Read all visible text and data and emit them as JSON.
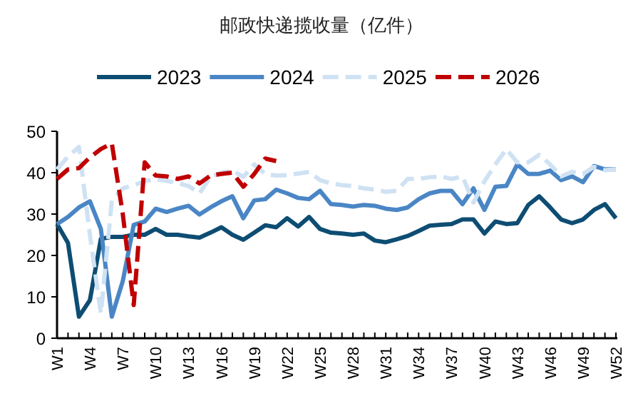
{
  "chart_data": {
    "type": "line",
    "title": "邮政快递揽收量（亿件）",
    "categories": [
      "W1",
      null,
      null,
      "W4",
      null,
      null,
      "W7",
      null,
      null,
      "W10",
      null,
      null,
      "W13",
      null,
      null,
      "W16",
      null,
      null,
      "W19",
      null,
      null,
      "W22",
      null,
      null,
      "W25",
      null,
      null,
      "W28",
      null,
      null,
      "W31",
      null,
      null,
      "W34",
      null,
      null,
      "W37",
      null,
      null,
      "W40",
      null,
      null,
      "W43",
      null,
      null,
      "W46",
      null,
      null,
      "W49",
      null,
      null,
      "W52"
    ],
    "ylim": [
      0,
      50
    ],
    "yticks": [
      0,
      10,
      20,
      30,
      40,
      50
    ],
    "legend": "top",
    "grid": false,
    "marker": "none",
    "series": [
      {
        "name": "2023",
        "color": "#0e4d73",
        "line_style": "solid",
        "values": [
          27.6,
          23,
          5.2,
          9.2,
          24,
          24.5,
          24.5,
          25,
          25,
          26.4,
          25,
          25,
          24.6,
          24.3,
          25.5,
          26.8,
          25,
          23.8,
          25.5,
          27.3,
          26.8,
          29,
          27,
          29.3,
          26.4,
          25.5,
          25.3,
          25,
          25.3,
          23.6,
          23.2,
          23.9,
          24.7,
          25.9,
          27.2,
          27.4,
          27.6,
          28.7,
          28.7,
          25.3,
          28.2,
          27.6,
          27.8,
          32.2,
          34.3,
          31.6,
          28.7,
          27.8,
          28.7,
          31,
          32.4,
          29
        ]
      },
      {
        "name": "2024",
        "color": "#4a86c5",
        "line_style": "solid",
        "values": [
          27.6,
          29.3,
          31.6,
          33.1,
          26.4,
          5.2,
          13.8,
          27.4,
          28.2,
          31.3,
          30.5,
          31.3,
          32,
          29.9,
          31.6,
          33.1,
          34.3,
          29,
          33.3,
          33.6,
          35.9,
          35,
          33.9,
          33.6,
          35.6,
          32.4,
          32.2,
          31.8,
          32.2,
          32,
          31.3,
          31,
          31.6,
          33.6,
          35,
          35.6,
          35.6,
          32.4,
          36.2,
          31,
          36.6,
          36.8,
          42,
          39.7,
          39.7,
          40.5,
          38.2,
          39.1,
          37.7,
          41.6,
          40.8,
          40.8
        ]
      },
      {
        "name": "2025",
        "color": "#cfe2f3",
        "line_style": "dashed",
        "values": [
          40.8,
          43.9,
          46.2,
          25,
          6,
          33.3,
          36.2,
          37,
          37.9,
          38.5,
          38,
          37.5,
          36.8,
          35,
          39,
          40,
          40.5,
          39,
          42,
          39.7,
          39.3,
          39.4,
          39.8,
          40.2,
          38.2,
          37.4,
          37,
          36.8,
          36.2,
          35.9,
          35.4,
          35.6,
          38.5,
          38.5,
          38.9,
          39.1,
          38.5,
          39.1,
          32.8,
          37.9,
          42,
          45.7,
          42.5,
          42.5,
          44.3,
          42,
          39.1,
          40.2,
          39.7,
          41.4,
          40.6,
          40.8
        ]
      },
      {
        "name": "2026",
        "color": "#c00000",
        "line_style": "dashed",
        "values": [
          38.5,
          40.8,
          41.1,
          43.7,
          45.7,
          47.1,
          30,
          8,
          42.5,
          39.3,
          39.1,
          38.5,
          39.1,
          37.4,
          39.3,
          39.7,
          40,
          36.6,
          39.7,
          43.4,
          42.8,
          null,
          null,
          null,
          null,
          null,
          null,
          null,
          null,
          null,
          null,
          null,
          null,
          null,
          null,
          null,
          null,
          null,
          null,
          null,
          null,
          null,
          null,
          null,
          null,
          null,
          null,
          null,
          null,
          null,
          null,
          null
        ]
      }
    ]
  }
}
